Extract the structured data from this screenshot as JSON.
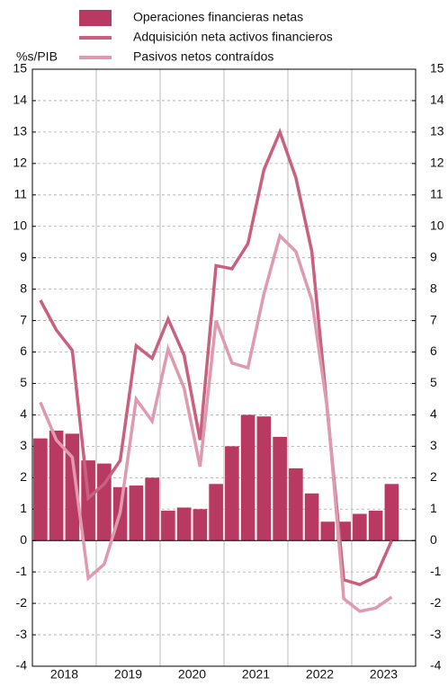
{
  "chart_data": {
    "type": "bar_line",
    "y_axis_label": "%s/PIB",
    "x_labels": [
      "2018",
      "2019",
      "2020",
      "2021",
      "2022",
      "2023"
    ],
    "quarters_per_label": 4,
    "series": [
      {
        "name": "Operaciones financieras netas",
        "kind": "bar",
        "color": "#b83a62",
        "values": [
          3.25,
          3.5,
          3.4,
          2.55,
          2.45,
          1.7,
          1.75,
          2.0,
          0.95,
          1.05,
          1.0,
          1.8,
          3.0,
          4.0,
          3.95,
          3.3,
          2.3,
          1.5,
          0.6,
          0.6,
          0.85,
          0.95,
          1.8
        ]
      },
      {
        "name": "Adquisición neta activos financieros",
        "kind": "line",
        "color": "#c9607f",
        "values": [
          7.65,
          6.7,
          6.05,
          1.35,
          1.8,
          2.55,
          6.2,
          5.8,
          7.05,
          5.9,
          3.2,
          8.75,
          8.65,
          9.45,
          11.8,
          13.0,
          11.55,
          9.2,
          4.0,
          -1.25,
          -1.4,
          -1.15,
          0.0
        ]
      },
      {
        "name": "Pasivos netos contraídos",
        "kind": "line",
        "color": "#e09ab0",
        "values": [
          4.4,
          3.2,
          2.65,
          -1.2,
          -0.75,
          0.9,
          4.5,
          3.8,
          6.1,
          4.85,
          2.35,
          7.0,
          5.65,
          5.5,
          7.85,
          9.7,
          9.2,
          7.65,
          4.1,
          -1.85,
          -2.25,
          -2.15,
          -1.8
        ]
      }
    ],
    "ylim": [
      -4,
      15
    ],
    "yticks": [
      -4,
      -3,
      -2,
      -1,
      0,
      1,
      2,
      3,
      4,
      5,
      6,
      7,
      8,
      9,
      10,
      11,
      12,
      13,
      14,
      15
    ],
    "y2lim": [
      -4,
      15
    ],
    "y2ticks": [
      -4,
      -3,
      -2,
      -1,
      0,
      1,
      2,
      3,
      4,
      5,
      6,
      7,
      8,
      9,
      10,
      11,
      12,
      13,
      14,
      15
    ],
    "grid": true
  }
}
